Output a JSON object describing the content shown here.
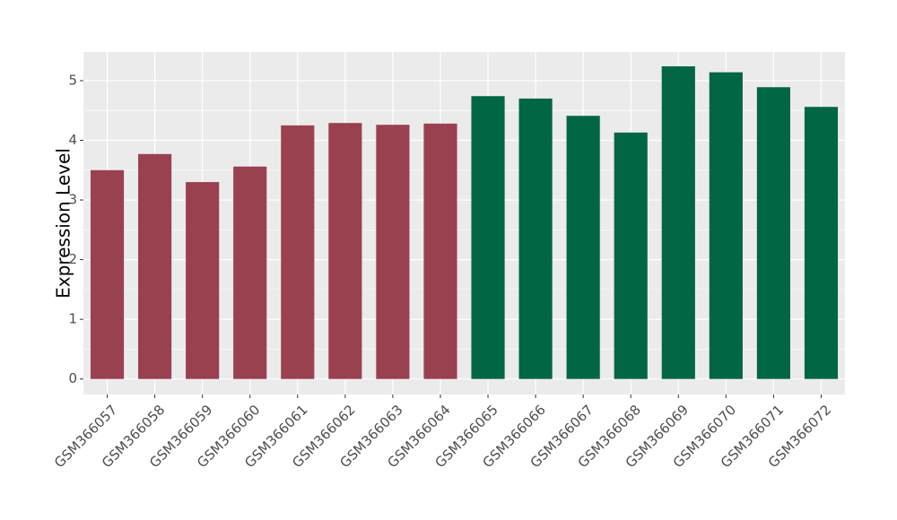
{
  "chart_data": {
    "type": "bar",
    "y_label": "Expression Level",
    "categories": [
      "GSM366057",
      "GSM366058",
      "GSM366059",
      "GSM366060",
      "GSM366061",
      "GSM366062",
      "GSM366063",
      "GSM366064",
      "GSM366065",
      "GSM366066",
      "GSM366067",
      "GSM366068",
      "GSM366069",
      "GSM366070",
      "GSM366071",
      "GSM366072"
    ],
    "values": [
      3.5,
      3.77,
      3.3,
      3.56,
      4.25,
      4.29,
      4.26,
      4.28,
      4.74,
      4.7,
      4.41,
      4.13,
      5.24,
      5.14,
      4.89,
      4.56
    ],
    "colors": [
      "#9a4150",
      "#9a4150",
      "#9a4150",
      "#9a4150",
      "#9a4150",
      "#9a4150",
      "#9a4150",
      "#9a4150",
      "#006644",
      "#006644",
      "#006644",
      "#006644",
      "#006644",
      "#006644",
      "#006644",
      "#006644"
    ],
    "ylim": [
      -0.26,
      5.48
    ],
    "yticks": [
      0,
      1,
      2,
      3,
      4,
      5
    ],
    "grid": true
  }
}
